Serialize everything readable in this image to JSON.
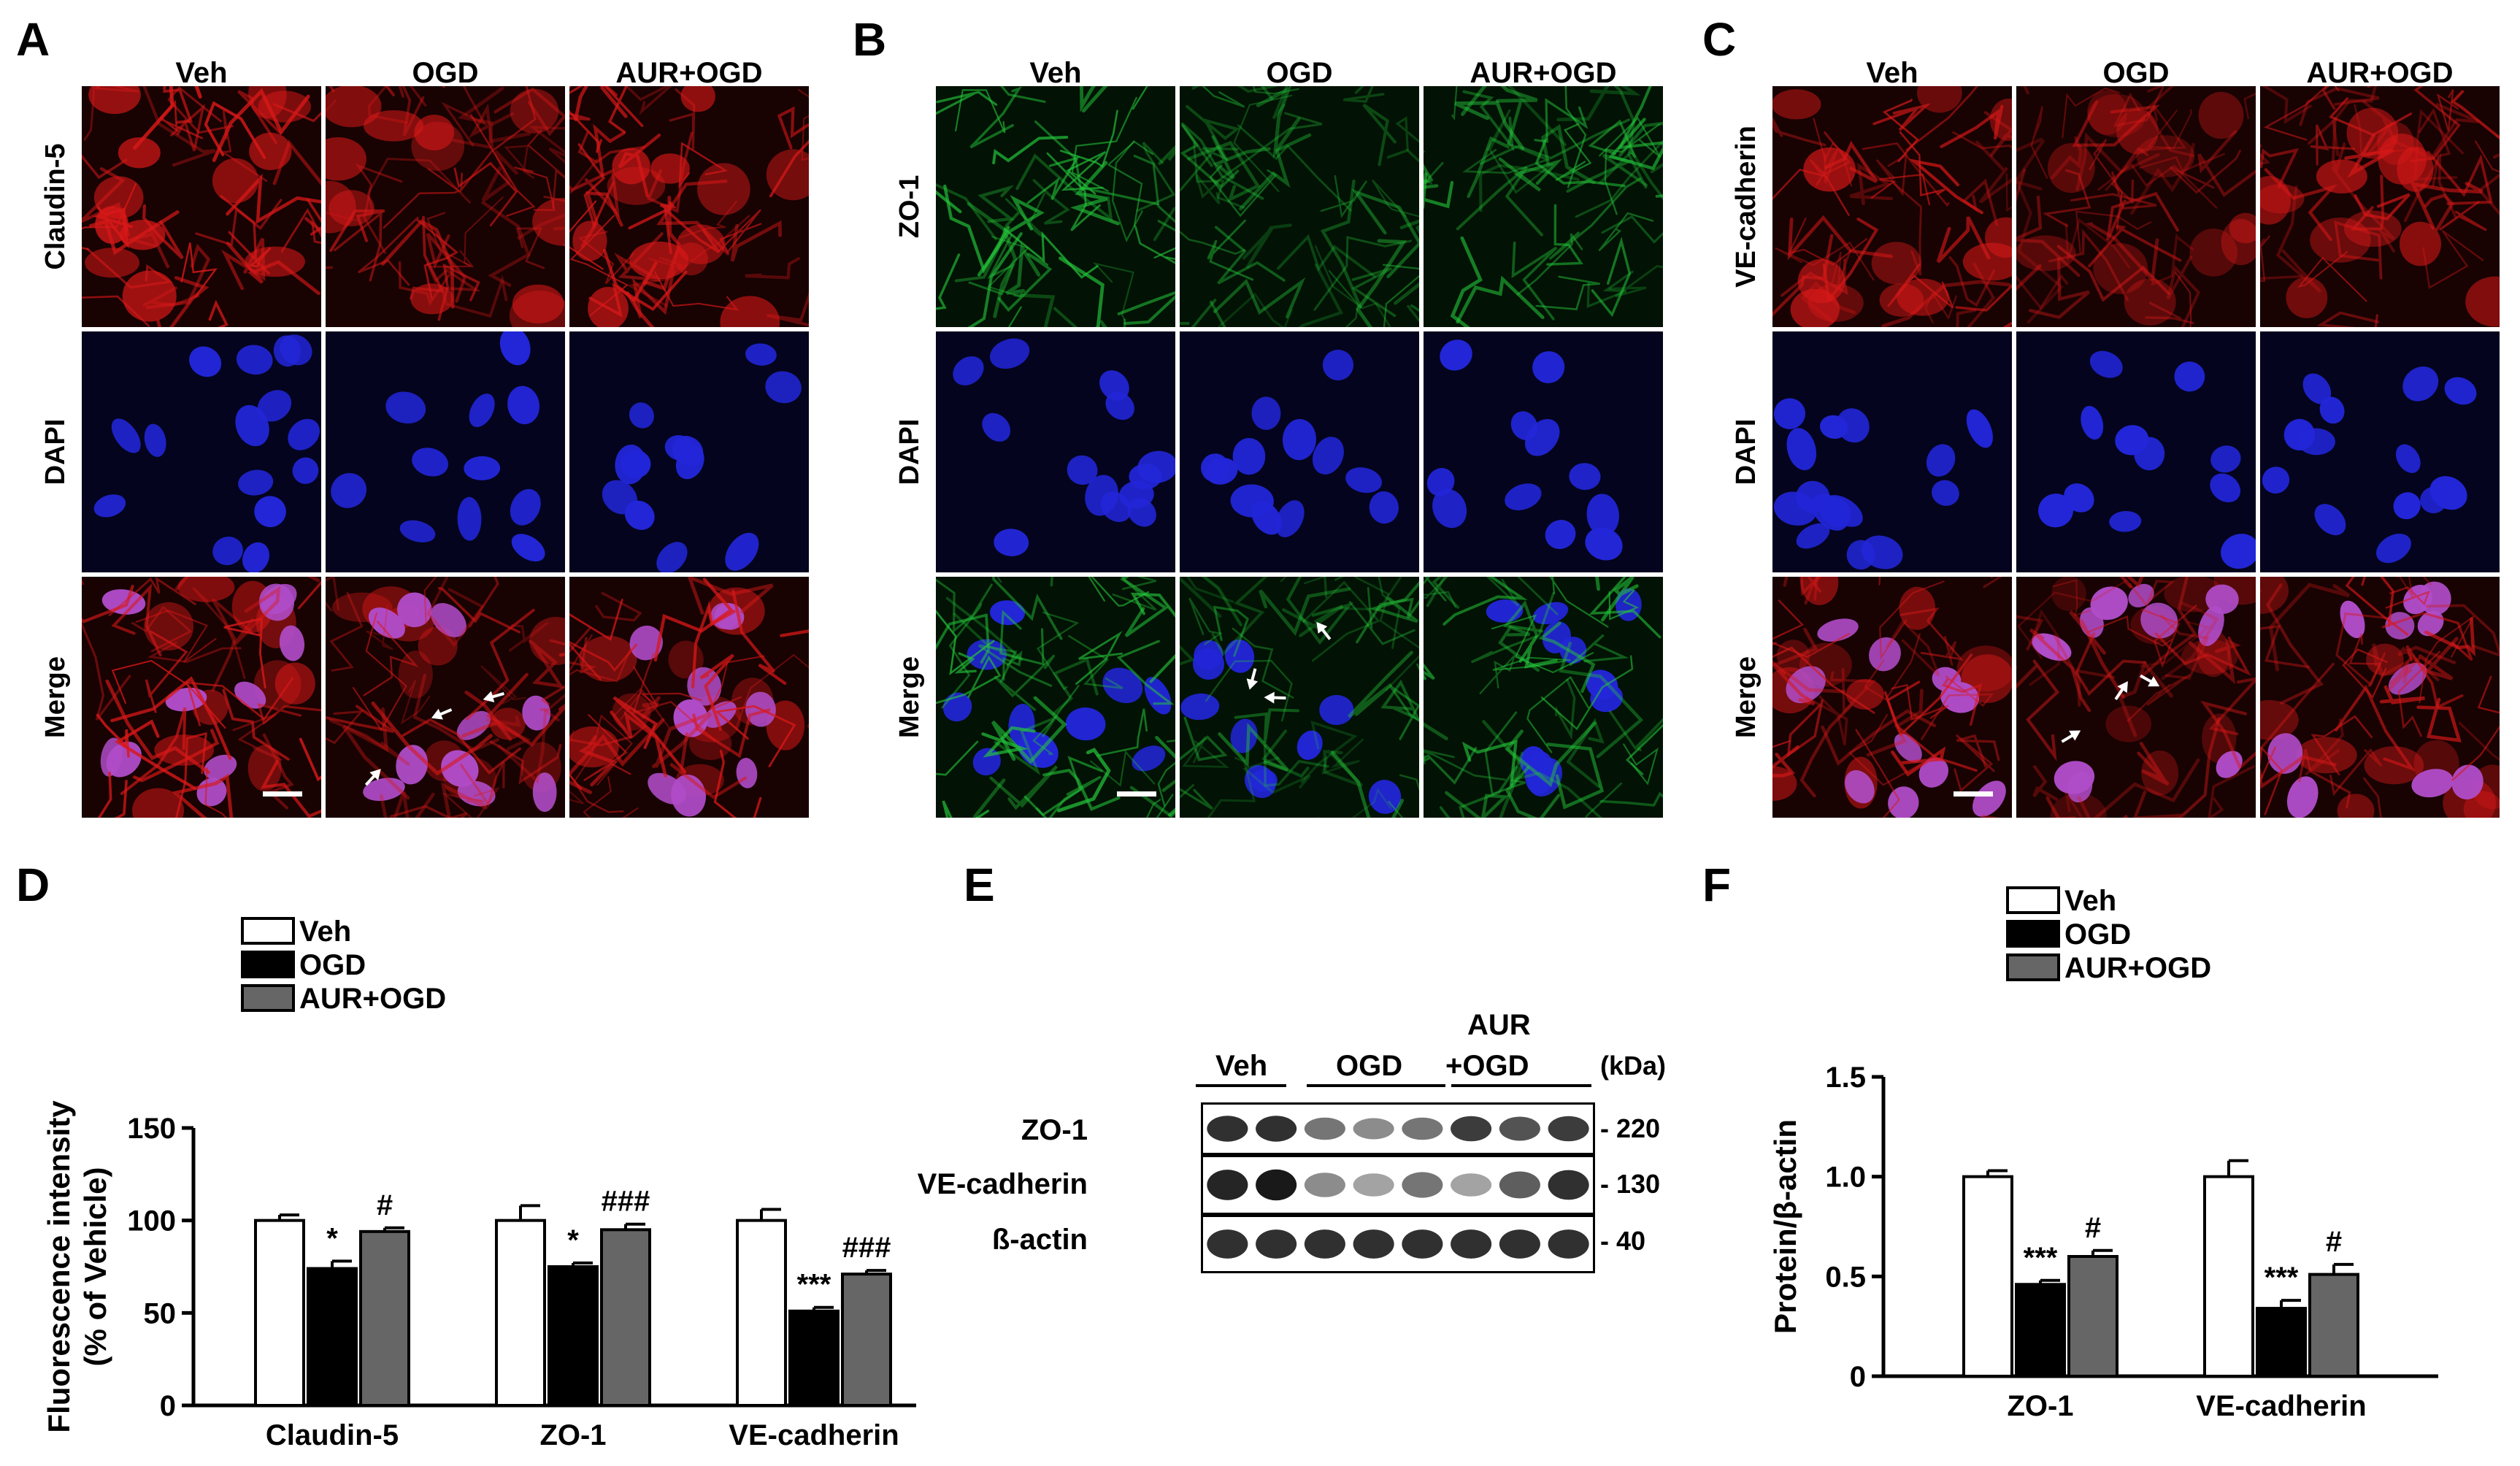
{
  "panels": {
    "A": {
      "label": "A",
      "columns": [
        "Veh",
        "OGD",
        "AUR+OGD"
      ],
      "rows": [
        "Claudin-5",
        "DAPI",
        "Merge"
      ]
    },
    "B": {
      "label": "B",
      "columns": [
        "Veh",
        "OGD",
        "AUR+OGD"
      ],
      "rows": [
        "ZO-1",
        "DAPI",
        "Merge"
      ]
    },
    "C": {
      "label": "C",
      "columns": [
        "Veh",
        "OGD",
        "AUR+OGD"
      ],
      "rows": [
        "VE-cadherin",
        "DAPI",
        "Merge"
      ]
    },
    "D": {
      "label": "D"
    },
    "E": {
      "label": "E"
    },
    "F": {
      "label": "F"
    }
  },
  "colors": {
    "red_stain": "#d81818",
    "green_stain": "#24c43a",
    "blue_stain": "#2226d8",
    "veh_bar": "#ffffff",
    "ogd_bar": "#000000",
    "aur_bar": "#666666"
  },
  "western_blot": {
    "group_labels": [
      "Veh",
      "OGD",
      "AUR",
      "+OGD"
    ],
    "kda_label": "(kDa)",
    "bands": [
      {
        "name": "ZO-1",
        "kda": "- 220"
      },
      {
        "name": "VE-cadherin",
        "kda": "- 130"
      },
      {
        "name": "ß-actin",
        "kda": "- 40"
      }
    ]
  },
  "chart_data": [
    {
      "type": "bar",
      "panel": "D",
      "categories": [
        "Claudin-5",
        "ZO-1",
        "VE-cadherin"
      ],
      "series": [
        {
          "name": "Veh",
          "values": [
            100,
            100,
            100
          ],
          "errors": [
            3,
            8,
            6
          ]
        },
        {
          "name": "OGD",
          "values": [
            74,
            75,
            51
          ],
          "errors": [
            4,
            2,
            2
          ]
        },
        {
          "name": "AUR+OGD",
          "values": [
            94,
            95,
            71
          ],
          "errors": [
            2,
            3,
            2
          ]
        }
      ],
      "annotations": [
        [
          "",
          "*",
          "#"
        ],
        [
          "",
          "*",
          "###"
        ],
        [
          "",
          "***",
          "###"
        ]
      ],
      "ylabel": "Fluorescence intensity (% of Vehicle)",
      "ylabel_line1": "Fluorescence intensity",
      "ylabel_line2": "(% of Vehicle)",
      "ylim": [
        0,
        150
      ],
      "yticks": [
        "0",
        "50",
        "100",
        "150"
      ],
      "legend_placement": "top-left"
    },
    {
      "type": "bar",
      "panel": "F",
      "categories": [
        "ZO-1",
        "VE-cadherin"
      ],
      "series": [
        {
          "name": "Veh",
          "values": [
            1.0,
            1.0
          ],
          "errors": [
            0.03,
            0.08
          ]
        },
        {
          "name": "OGD",
          "values": [
            0.46,
            0.34
          ],
          "errors": [
            0.02,
            0.04
          ]
        },
        {
          "name": "AUR+OGD",
          "values": [
            0.6,
            0.51
          ],
          "errors": [
            0.03,
            0.05
          ]
        }
      ],
      "annotations": [
        [
          "",
          "***",
          "#"
        ],
        [
          "",
          "***",
          "#"
        ]
      ],
      "ylabel": "Protein/β-actin",
      "ylim": [
        0,
        1.5
      ],
      "yticks": [
        "0",
        "0.5",
        "1.0",
        "1.5"
      ],
      "legend_placement": "top-left"
    }
  ]
}
